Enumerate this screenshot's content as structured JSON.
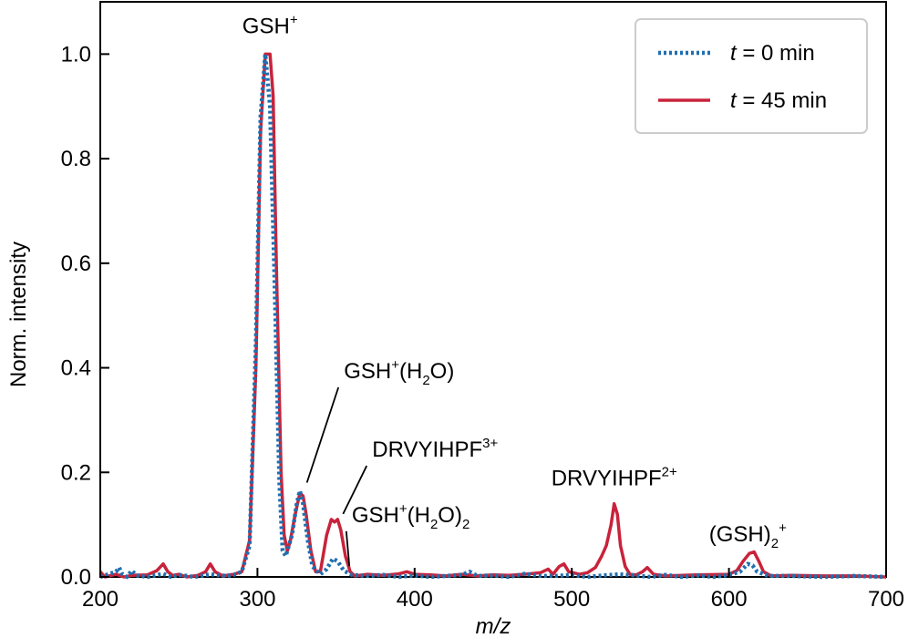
{
  "chart_data": {
    "type": "line",
    "xlabel": "m/z",
    "ylabel": "Norm. intensity",
    "xlim": [
      200,
      700
    ],
    "ylim": [
      0,
      1.1
    ],
    "x_ticks": [
      "200",
      "300",
      "400",
      "500",
      "600",
      "700"
    ],
    "y_ticks": [
      "0.0",
      "0.2",
      "0.4",
      "0.6",
      "0.8",
      "1.0"
    ],
    "legend": {
      "placement": "top-right",
      "entries": [
        {
          "prefix": "t",
          "suffix": " = 0 min",
          "style": "dotted",
          "color": "#1f6fb0"
        },
        {
          "prefix": "t",
          "suffix": " = 45 min",
          "style": "solid",
          "color": "#c8233b"
        }
      ]
    },
    "series": [
      {
        "legend_index": 0,
        "color": "#1f6fb0",
        "style": "dotted",
        "points": [
          [
            200,
            0.0
          ],
          [
            205,
            0.005
          ],
          [
            210,
            0.01
          ],
          [
            212,
            0.018
          ],
          [
            214,
            0.005
          ],
          [
            217,
            0.0
          ],
          [
            220,
            0.012
          ],
          [
            223,
            0.003
          ],
          [
            230,
            0.0
          ],
          [
            240,
            0.006
          ],
          [
            245,
            0.0
          ],
          [
            250,
            0.004
          ],
          [
            260,
            0.0
          ],
          [
            270,
            0.005
          ],
          [
            280,
            0.002
          ],
          [
            285,
            0.004
          ],
          [
            290,
            0.01
          ],
          [
            295,
            0.06
          ],
          [
            299,
            0.45
          ],
          [
            302,
            0.88
          ],
          [
            305,
            1.0
          ],
          [
            308,
            0.9
          ],
          [
            311,
            0.55
          ],
          [
            314,
            0.18
          ],
          [
            316,
            0.05
          ],
          [
            318,
            0.04
          ],
          [
            320,
            0.06
          ],
          [
            322,
            0.08
          ],
          [
            325,
            0.14
          ],
          [
            327,
            0.165
          ],
          [
            329,
            0.14
          ],
          [
            332,
            0.07
          ],
          [
            335,
            0.02
          ],
          [
            340,
            0.005
          ],
          [
            344,
            0.015
          ],
          [
            348,
            0.035
          ],
          [
            351,
            0.03
          ],
          [
            355,
            0.012
          ],
          [
            360,
            0.004
          ],
          [
            370,
            0.002
          ],
          [
            380,
            0.004
          ],
          [
            390,
            0.0
          ],
          [
            400,
            0.003
          ],
          [
            410,
            0.0
          ],
          [
            420,
            0.002
          ],
          [
            430,
            0.004
          ],
          [
            435,
            0.01
          ],
          [
            440,
            0.002
          ],
          [
            450,
            0.003
          ],
          [
            460,
            0.0
          ],
          [
            470,
            0.006
          ],
          [
            475,
            0.004
          ],
          [
            480,
            0.002
          ],
          [
            490,
            0.002
          ],
          [
            500,
            0.004
          ],
          [
            510,
            0.0
          ],
          [
            520,
            0.003
          ],
          [
            530,
            0.005
          ],
          [
            540,
            0.003
          ],
          [
            550,
            0.0
          ],
          [
            560,
            0.004
          ],
          [
            570,
            0.0
          ],
          [
            580,
            0.003
          ],
          [
            590,
            0.0
          ],
          [
            600,
            0.004
          ],
          [
            607,
            0.01
          ],
          [
            612,
            0.025
          ],
          [
            615,
            0.022
          ],
          [
            618,
            0.01
          ],
          [
            625,
            0.002
          ],
          [
            640,
            0.002
          ],
          [
            660,
            0.0
          ],
          [
            680,
            0.002
          ],
          [
            700,
            0.0
          ]
        ]
      },
      {
        "legend_index": 1,
        "color": "#c8233b",
        "style": "solid",
        "points": [
          [
            200,
            0.01
          ],
          [
            203,
            0.0
          ],
          [
            210,
            0.005
          ],
          [
            215,
            0.0
          ],
          [
            220,
            0.003
          ],
          [
            230,
            0.004
          ],
          [
            236,
            0.012
          ],
          [
            240,
            0.025
          ],
          [
            243,
            0.01
          ],
          [
            246,
            0.003
          ],
          [
            250,
            0.005
          ],
          [
            255,
            0.0
          ],
          [
            262,
            0.003
          ],
          [
            267,
            0.01
          ],
          [
            270,
            0.025
          ],
          [
            273,
            0.01
          ],
          [
            278,
            0.002
          ],
          [
            285,
            0.005
          ],
          [
            290,
            0.01
          ],
          [
            295,
            0.07
          ],
          [
            299,
            0.4
          ],
          [
            302,
            0.85
          ],
          [
            305,
            1.0
          ],
          [
            308,
            1.0
          ],
          [
            310,
            0.92
          ],
          [
            312,
            0.6
          ],
          [
            315,
            0.2
          ],
          [
            317,
            0.08
          ],
          [
            319,
            0.05
          ],
          [
            321,
            0.07
          ],
          [
            324,
            0.12
          ],
          [
            327,
            0.16
          ],
          [
            329,
            0.155
          ],
          [
            331,
            0.12
          ],
          [
            334,
            0.05
          ],
          [
            337,
            0.01
          ],
          [
            340,
            0.01
          ],
          [
            344,
            0.08
          ],
          [
            347,
            0.11
          ],
          [
            349,
            0.105
          ],
          [
            351,
            0.11
          ],
          [
            353,
            0.09
          ],
          [
            356,
            0.04
          ],
          [
            359,
            0.01
          ],
          [
            362,
            0.002
          ],
          [
            370,
            0.005
          ],
          [
            380,
            0.003
          ],
          [
            390,
            0.006
          ],
          [
            395,
            0.01
          ],
          [
            400,
            0.005
          ],
          [
            410,
            0.004
          ],
          [
            420,
            0.002
          ],
          [
            430,
            0.005
          ],
          [
            440,
            0.002
          ],
          [
            450,
            0.004
          ],
          [
            460,
            0.003
          ],
          [
            470,
            0.005
          ],
          [
            480,
            0.008
          ],
          [
            485,
            0.015
          ],
          [
            488,
            0.005
          ],
          [
            492,
            0.02
          ],
          [
            495,
            0.025
          ],
          [
            498,
            0.01
          ],
          [
            505,
            0.005
          ],
          [
            510,
            0.008
          ],
          [
            515,
            0.018
          ],
          [
            519,
            0.04
          ],
          [
            522,
            0.06
          ],
          [
            525,
            0.1
          ],
          [
            527,
            0.14
          ],
          [
            529,
            0.12
          ],
          [
            531,
            0.06
          ],
          [
            534,
            0.02
          ],
          [
            537,
            0.005
          ],
          [
            541,
            0.004
          ],
          [
            545,
            0.01
          ],
          [
            548,
            0.018
          ],
          [
            552,
            0.005
          ],
          [
            560,
            0.002
          ],
          [
            580,
            0.004
          ],
          [
            600,
            0.005
          ],
          [
            605,
            0.012
          ],
          [
            609,
            0.03
          ],
          [
            613,
            0.045
          ],
          [
            616,
            0.048
          ],
          [
            619,
            0.03
          ],
          [
            622,
            0.01
          ],
          [
            627,
            0.002
          ],
          [
            640,
            0.003
          ],
          [
            660,
            0.002
          ],
          [
            680,
            0.002
          ],
          [
            700,
            0.0
          ]
        ]
      }
    ],
    "annotations": [
      {
        "label": [
          {
            "t": "GSH"
          },
          {
            "t": "+",
            "sup": true
          }
        ],
        "x": 307,
        "y": 1.0,
        "text_x": 308,
        "text_y": 1.04,
        "anchor": "middle",
        "leader": false
      },
      {
        "label": [
          {
            "t": "GSH"
          },
          {
            "t": "+",
            "sup": true
          },
          {
            "t": "(H"
          },
          {
            "t": "2",
            "sub": true
          },
          {
            "t": "O)"
          }
        ],
        "x": 328,
        "y": 0.17,
        "text_x": 355,
        "text_y": 0.38,
        "anchor": "start",
        "leader": true
      },
      {
        "label": [
          {
            "t": "DRVYIHPF"
          },
          {
            "t": "3+",
            "sup": true
          }
        ],
        "x": 351,
        "y": 0.11,
        "text_x": 373,
        "text_y": 0.23,
        "anchor": "start",
        "leader": true
      },
      {
        "label": [
          {
            "t": "GSH"
          },
          {
            "t": "+",
            "sup": true
          },
          {
            "t": "(H"
          },
          {
            "t": "2",
            "sub": true
          },
          {
            "t": "O)"
          },
          {
            "t": "2",
            "sub": true
          }
        ],
        "x": 355,
        "y": 0.01,
        "text_x": 360,
        "text_y": 0.105,
        "anchor": "start",
        "leader": true
      },
      {
        "label": [
          {
            "t": "DRVYIHPF"
          },
          {
            "t": "2+",
            "sup": true
          }
        ],
        "x": 527,
        "y": 0.15,
        "text_x": 527,
        "text_y": 0.175,
        "anchor": "middle",
        "leader": false
      },
      {
        "label": [
          {
            "t": "(GSH)"
          },
          {
            "t": "2",
            "sub": true
          },
          {
            "t": "+",
            "sup": true
          }
        ],
        "x": 615,
        "y": 0.05,
        "text_x": 612,
        "text_y": 0.068,
        "anchor": "middle",
        "leader": false
      }
    ]
  }
}
